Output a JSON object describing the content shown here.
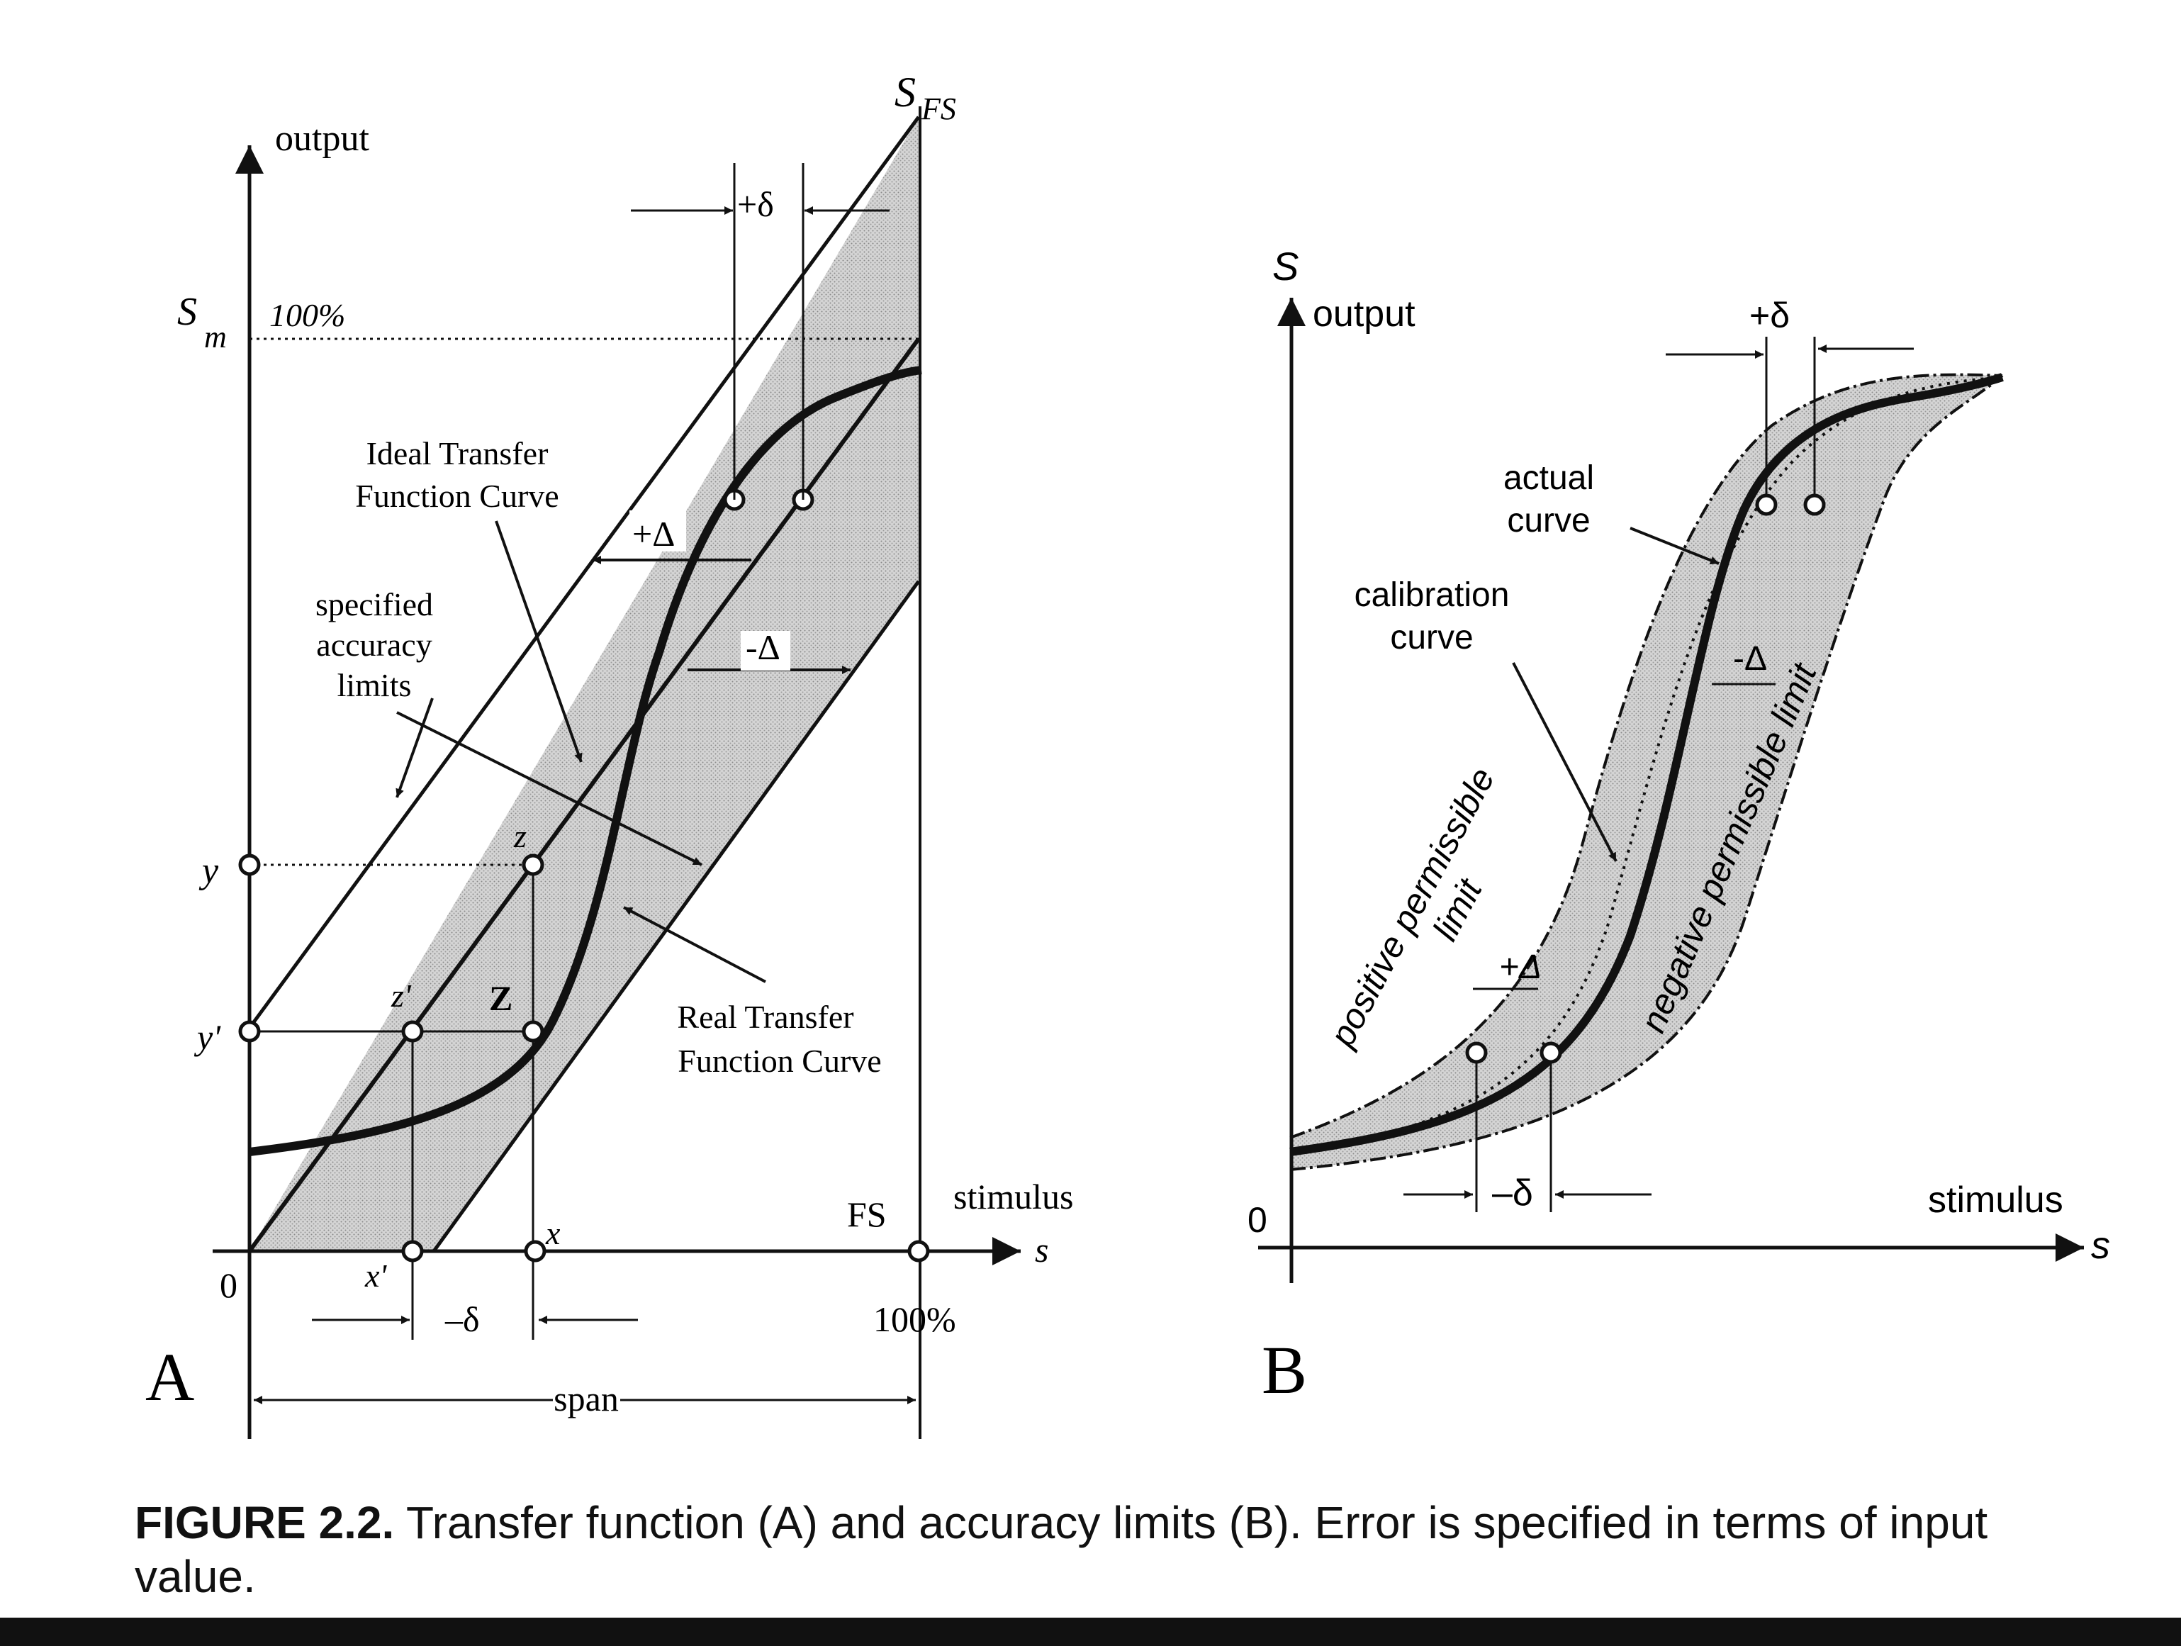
{
  "panel_a": {
    "label": "A",
    "y_axis_label": "output",
    "x_axis_label": "stimulus",
    "x_symbol": "s",
    "sfs_main": "S",
    "sfs_sub": "FS",
    "sm_main": "S",
    "sm_sub": "m",
    "top_percent": "100%",
    "fs": "FS",
    "bottom_percent": "100%",
    "origin": "0",
    "y": "y",
    "y_prime": "y'",
    "z": "z",
    "z_prime": "z'",
    "big_z": "Z",
    "x": "x",
    "x_prime": "x'",
    "plus_delta_small": "+δ",
    "minus_delta_small": "–δ",
    "plus_Delta": "+Δ",
    "minus_Delta": "-Δ",
    "span": "span",
    "ideal_curve_lines": [
      "Ideal Transfer",
      "Function Curve"
    ],
    "accuracy_lines": [
      "specified",
      "accuracy",
      "limits"
    ],
    "real_curve_lines": [
      "Real Transfer",
      "Function Curve"
    ]
  },
  "panel_b": {
    "label": "B",
    "y_symbol": "S",
    "y_axis_label": "output",
    "x_axis_label": "stimulus",
    "x_symbol": "s",
    "origin": "0",
    "plus_delta_small": "+δ",
    "minus_delta_small": "–δ",
    "plus_Delta": "+Δ",
    "minus_Delta": "-Δ",
    "actual_lines": [
      "actual",
      "curve"
    ],
    "calibration_lines": [
      "calibration",
      "curve"
    ],
    "positive_limit_lines": [
      "positive permissible",
      "limit"
    ],
    "negative_limit": "negative permissible limit"
  },
  "caption": {
    "title": "FIGURE 2.2.",
    "text": " Transfer function (A) and accuracy limits (B). Error is specified in terms of input value."
  }
}
